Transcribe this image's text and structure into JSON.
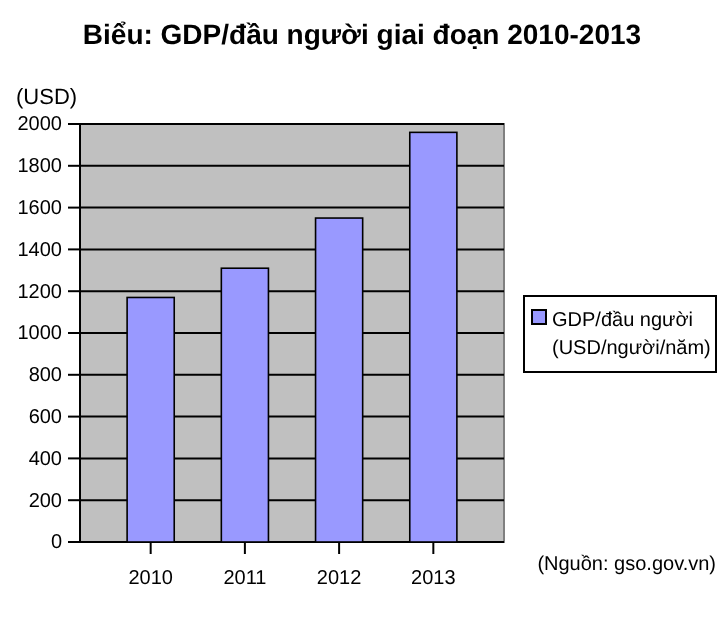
{
  "chart_data": {
    "type": "bar",
    "title": "Biểu: GDP/đầu người giai đoạn 2010-2013",
    "ylabel": "(USD)",
    "categories": [
      "2010",
      "2011",
      "2012",
      "2013"
    ],
    "series": [
      {
        "name": "GDP/đầu người (USD/người/năm)",
        "color": "#9999ff",
        "values": [
          1170,
          1310,
          1550,
          1960
        ]
      }
    ],
    "ylim": [
      0,
      2000
    ],
    "yticks": [
      0,
      200,
      400,
      600,
      800,
      1000,
      1200,
      1400,
      1600,
      1800,
      2000
    ],
    "grid": "y",
    "legend": "right",
    "annotations": [
      "(Nguồn: gso.gov.vn)"
    ]
  }
}
